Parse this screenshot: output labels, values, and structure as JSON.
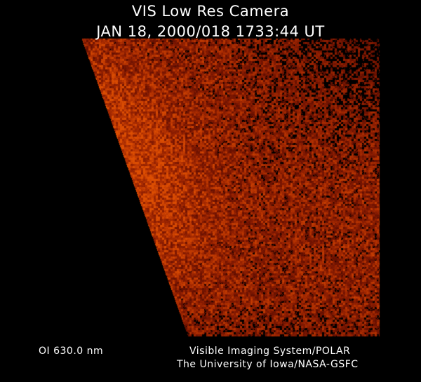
{
  "header": {
    "title": "VIS Low Res Camera",
    "datetime": "JAN 18, 2000/018 1733:44 UT"
  },
  "footer": {
    "filter": "OI  630.0 nm",
    "credit_line1": "Visible Imaging System/POLAR",
    "credit_line2": "The University of Iowa/NASA-GSFC"
  },
  "image": {
    "subject": "auroral emission image",
    "colormap": [
      "#000000",
      "#5a1400",
      "#8a2c04",
      "#c04a08"
    ]
  }
}
